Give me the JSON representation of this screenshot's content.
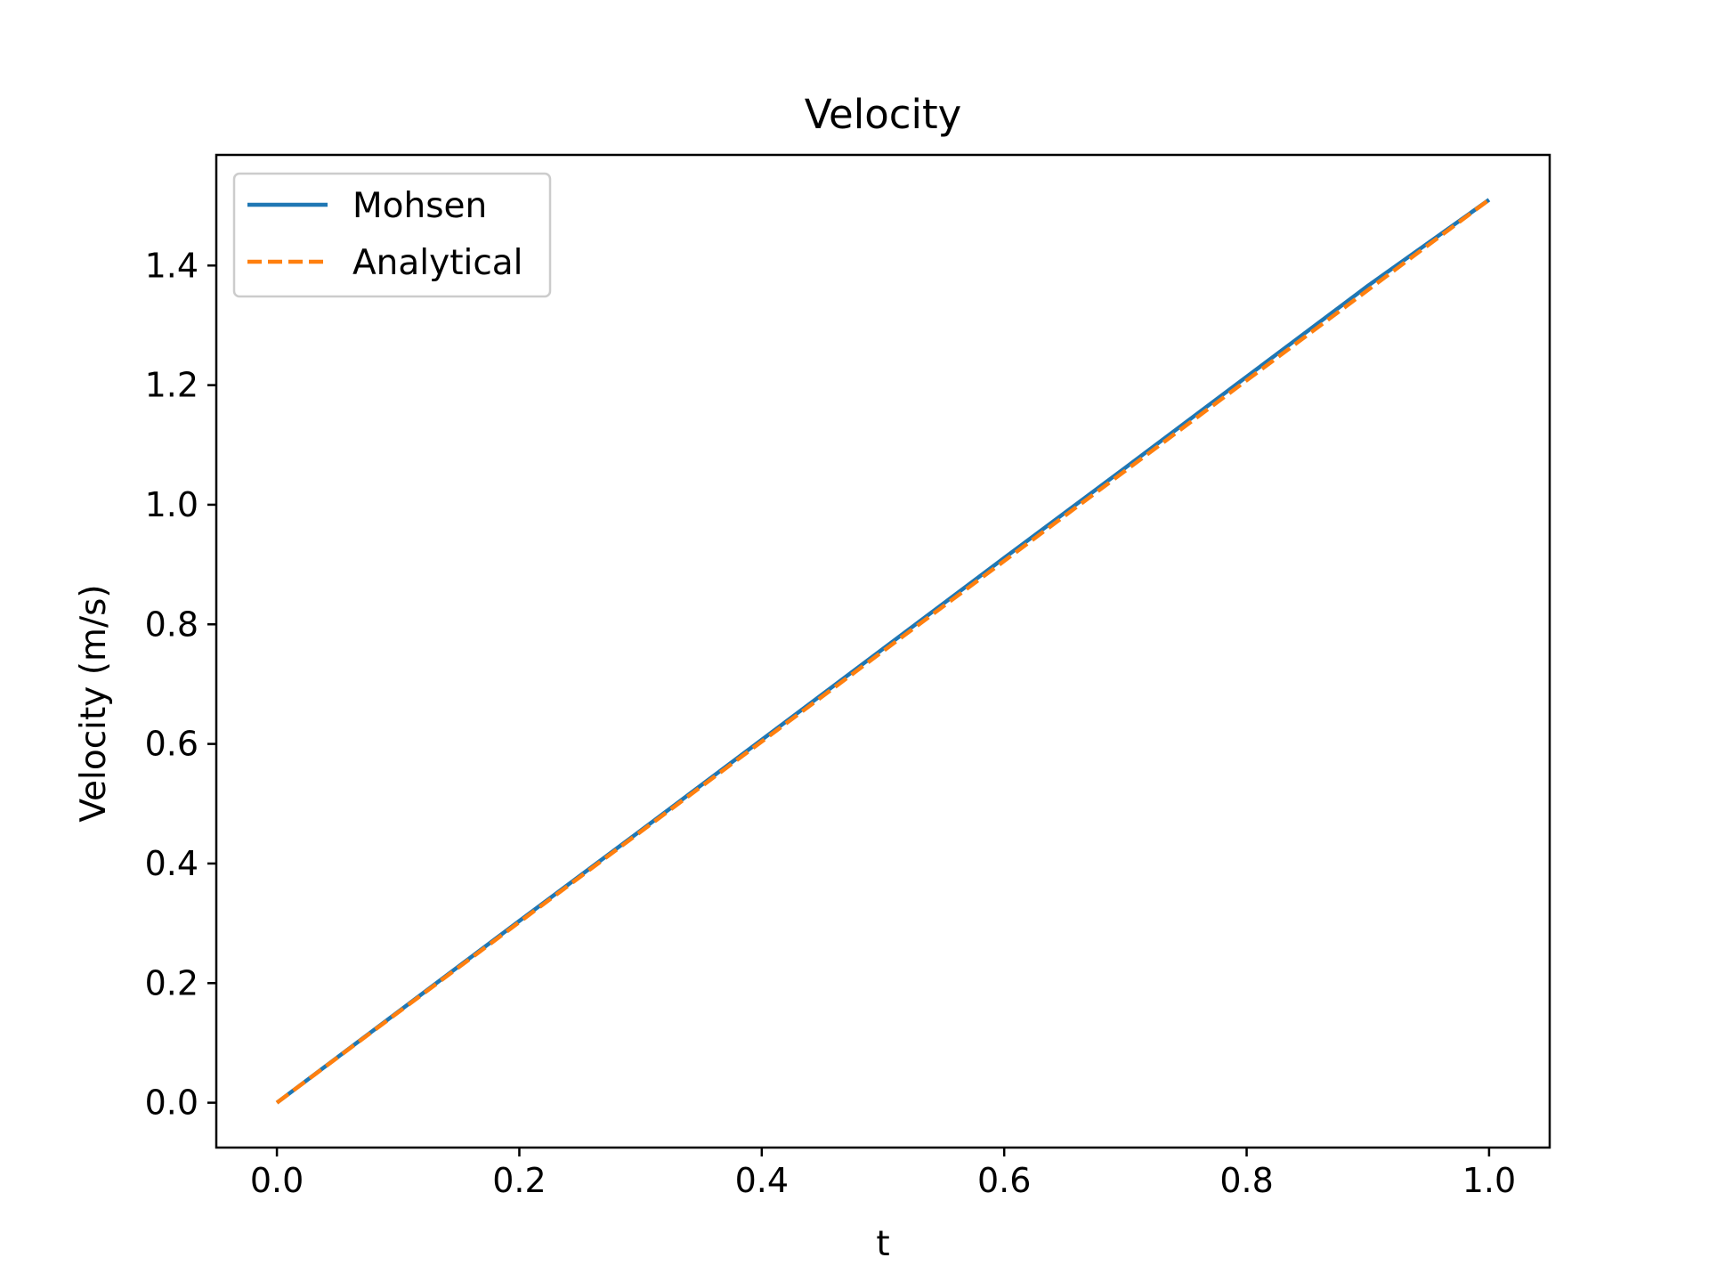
{
  "chart_data": {
    "type": "line",
    "title": "Velocity",
    "xlabel": "t",
    "ylabel": "Velocity (m/s)",
    "xlim": [
      -0.05,
      1.05
    ],
    "ylim": [
      -0.075,
      1.585
    ],
    "xticks": [
      0.0,
      0.2,
      0.4,
      0.6,
      0.8,
      1.0
    ],
    "xtick_labels": [
      "0.0",
      "0.2",
      "0.4",
      "0.6",
      "0.8",
      "1.0"
    ],
    "yticks": [
      0.0,
      0.2,
      0.4,
      0.6,
      0.8,
      1.0,
      1.2,
      1.4
    ],
    "ytick_labels": [
      "0.0",
      "0.2",
      "0.4",
      "0.6",
      "0.8",
      "1.0",
      "1.2",
      "1.4"
    ],
    "grid": false,
    "legend_position": "top-left",
    "series": [
      {
        "name": "Mohsen",
        "color": "#1f77b4",
        "style": "solid",
        "x": [
          0.0,
          0.1,
          0.2,
          0.3,
          0.4,
          0.5,
          0.6,
          0.7,
          0.8,
          0.9,
          1.0
        ],
        "y": [
          0.0,
          0.152,
          0.304,
          0.455,
          0.607,
          0.759,
          0.911,
          1.062,
          1.214,
          1.366,
          1.51
        ]
      },
      {
        "name": "Analytical",
        "color": "#ff7f0e",
        "style": "dashed",
        "x": [
          0.0,
          0.1,
          0.2,
          0.3,
          0.4,
          0.5,
          0.6,
          0.7,
          0.8,
          0.9,
          1.0
        ],
        "y": [
          0.0,
          0.151,
          0.302,
          0.453,
          0.604,
          0.755,
          0.906,
          1.057,
          1.208,
          1.359,
          1.51
        ]
      }
    ]
  }
}
